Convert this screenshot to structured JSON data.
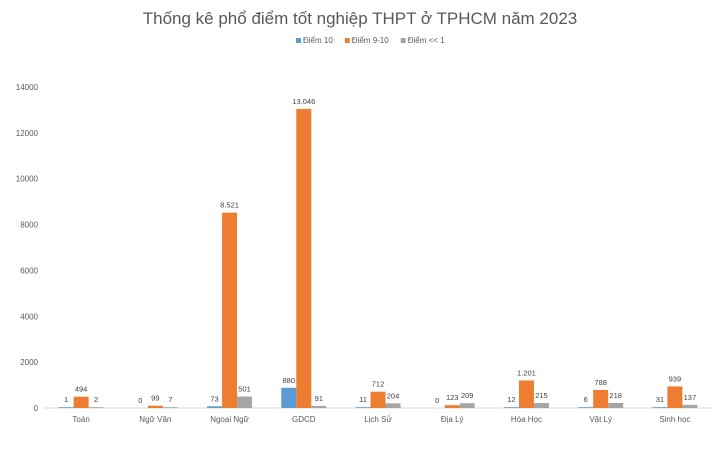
{
  "chart_data": {
    "type": "bar",
    "title": "Thống kê phổ điểm tốt nghiệp THPT ở TPHCM năm 2023",
    "xlabel": "",
    "ylabel": "",
    "ylim": [
      0,
      14000
    ],
    "yticks": [
      0,
      2000,
      4000,
      6000,
      8000,
      10000,
      12000,
      14000
    ],
    "legend_position": "top",
    "grid": false,
    "categories": [
      "Toán",
      "Ngữ Văn",
      "Ngoại Ngữ",
      "GDCD",
      "Lịch Sử",
      "Địa Lý",
      "Hóa Học",
      "Vật Lý",
      "Sinh học"
    ],
    "series": [
      {
        "name": "Điểm 10",
        "color": "#5b9bd5",
        "values": [
          1,
          0,
          73,
          880,
          11,
          0,
          12,
          6,
          31
        ],
        "labels": [
          "1",
          "0",
          "73",
          "880",
          "11",
          "0",
          "12",
          "6",
          "31"
        ]
      },
      {
        "name": "Điểm 9-10",
        "color": "#ed7d31",
        "values": [
          494,
          99,
          8521,
          13046,
          712,
          123,
          1201,
          788,
          939
        ],
        "labels": [
          "494",
          "99",
          "8.521",
          "13.046",
          "712",
          "123",
          "1.201",
          "788",
          "939"
        ]
      },
      {
        "name": "Điểm << 1",
        "color": "#a5a5a5",
        "values": [
          2,
          7,
          501,
          91,
          204,
          209,
          215,
          218,
          137
        ],
        "labels": [
          "2",
          "7",
          "501",
          "91",
          "204",
          "209",
          "215",
          "218",
          "137"
        ]
      }
    ]
  }
}
